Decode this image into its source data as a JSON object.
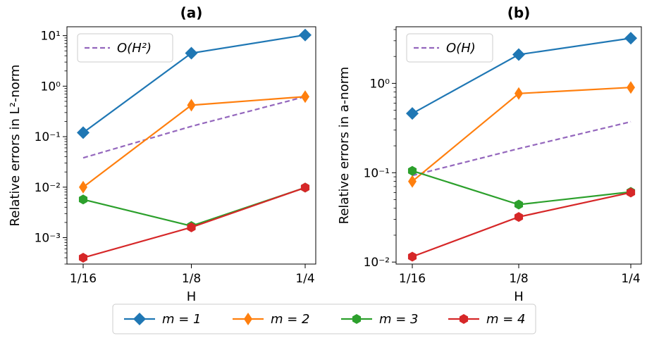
{
  "chart_data": [
    {
      "type": "line",
      "title": "(a)",
      "xlabel": "H",
      "ylabel": "Relative errors in L²-norm",
      "yscale": "log",
      "categories": [
        "1/16",
        "1/8",
        "1/4"
      ],
      "ylim": [
        0.0003,
        15
      ],
      "grid": false,
      "legend_placement": "top-left",
      "y_ticks": [
        {
          "value": 0.001,
          "label": "10⁻³"
        },
        {
          "value": 0.01,
          "label": "10⁻²"
        },
        {
          "value": 0.1,
          "label": "10⁻¹"
        },
        {
          "value": 1,
          "label": "10⁰"
        },
        {
          "value": 10,
          "label": "10¹"
        }
      ],
      "reference": {
        "name": "O(H²)",
        "values": [
          0.038,
          0.16,
          0.62
        ],
        "color": "#9467bd",
        "style": "dashed"
      },
      "series": [
        {
          "name": "m = 1",
          "values": [
            0.12,
            4.5,
            10.3
          ],
          "color": "#1f77b4",
          "marker": "diamond"
        },
        {
          "name": "m = 2",
          "values": [
            0.01,
            0.42,
            0.62
          ],
          "color": "#ff7f0e",
          "marker": "thin-diamond"
        },
        {
          "name": "m = 3",
          "values": [
            0.0057,
            0.0017,
            0.0098
          ],
          "color": "#2ca02c",
          "marker": "hexagon"
        },
        {
          "name": "m = 4",
          "values": [
            0.0004,
            0.0016,
            0.0098
          ],
          "color": "#d62728",
          "marker": "hexagon"
        }
      ]
    },
    {
      "type": "line",
      "title": "(b)",
      "xlabel": "H",
      "ylabel": "Relative errors in a-norm",
      "yscale": "log",
      "categories": [
        "1/16",
        "1/8",
        "1/4"
      ],
      "ylim": [
        0.0095,
        4.3
      ],
      "grid": false,
      "legend_placement": "top-left",
      "y_ticks": [
        {
          "value": 0.01,
          "label": "10⁻²"
        },
        {
          "value": 0.1,
          "label": "10⁻¹"
        },
        {
          "value": 1,
          "label": "10⁰"
        }
      ],
      "reference": {
        "name": "O(H)",
        "values": [
          0.093,
          0.186,
          0.372
        ],
        "color": "#9467bd",
        "style": "dashed"
      },
      "series": [
        {
          "name": "m = 1",
          "values": [
            0.46,
            2.1,
            3.2
          ],
          "color": "#1f77b4",
          "marker": "diamond"
        },
        {
          "name": "m = 2",
          "values": [
            0.08,
            0.77,
            0.9
          ],
          "color": "#ff7f0e",
          "marker": "thin-diamond"
        },
        {
          "name": "m = 3",
          "values": [
            0.105,
            0.044,
            0.061
          ],
          "color": "#2ca02c",
          "marker": "hexagon"
        },
        {
          "name": "m = 4",
          "values": [
            0.0115,
            0.032,
            0.06
          ],
          "color": "#d62728",
          "marker": "hexagon"
        }
      ]
    }
  ],
  "legend": {
    "entries": [
      {
        "label": "m = 1",
        "color": "#1f77b4",
        "marker": "diamond"
      },
      {
        "label": "m = 2",
        "color": "#ff7f0e",
        "marker": "thin-diamond"
      },
      {
        "label": "m = 3",
        "color": "#2ca02c",
        "marker": "hexagon"
      },
      {
        "label": "m = 4",
        "color": "#d62728",
        "marker": "hexagon"
      }
    ]
  }
}
